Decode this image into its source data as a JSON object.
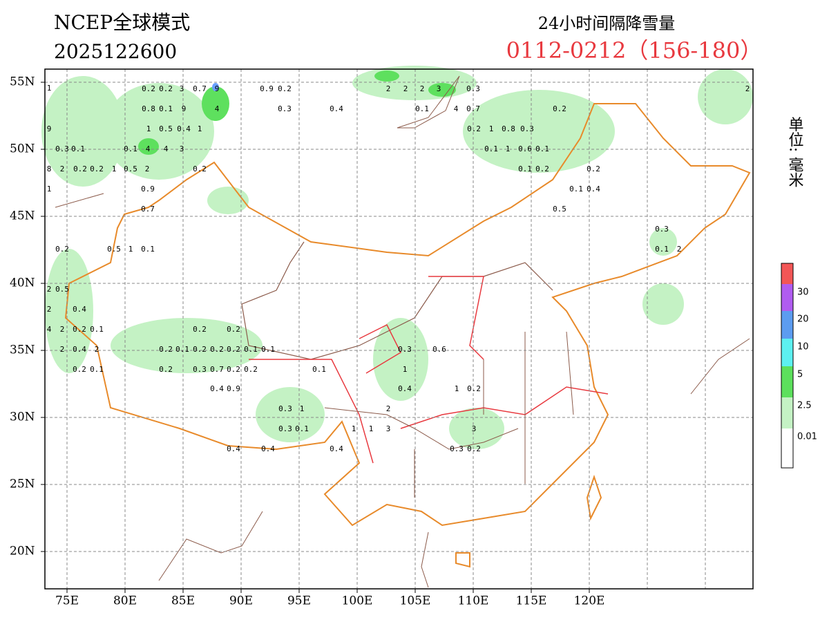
{
  "header": {
    "model": "NCEP全球模式",
    "init_time": "2025122600",
    "product": "24小时间隔降雪量",
    "period": "0112-0212（156-180）",
    "unit": "单位: 毫米"
  },
  "axes": {
    "lat_labels": [
      "55N",
      "50N",
      "45N",
      "40N",
      "35N",
      "30N",
      "25N",
      "20N"
    ],
    "lon_labels": [
      "75E",
      "80E",
      "85E",
      "90E",
      "95E",
      "100E",
      "105E",
      "110E",
      "115E",
      "120E"
    ]
  },
  "legend": {
    "labels": [
      "30",
      "20",
      "10",
      "5",
      "2.5",
      "0.01"
    ]
  },
  "stations": [
    1,
    0.2,
    0.2,
    3,
    0.7,
    9,
    0.9,
    0.2,
    2,
    2,
    2,
    3,
    0.3,
    2,
    0.8,
    0.1,
    9,
    4,
    0.3,
    0.4,
    0.1,
    4,
    0.7,
    0.2,
    9,
    1,
    0.5,
    0.4,
    1,
    0.2,
    1,
    0.8,
    0.3,
    0.3,
    0.1,
    0.1,
    4,
    4,
    3,
    0.1,
    1,
    0.6,
    0.1,
    8,
    2,
    0.2,
    0.2,
    1,
    0.5,
    2,
    0.2,
    0.1,
    0.2,
    0.2,
    1,
    0.9,
    0.1,
    0.4,
    0.7,
    0.5,
    0.3,
    0.2,
    0.5,
    1,
    0.1,
    0.1,
    2,
    0.5,
    2,
    2,
    0.4,
    4,
    2,
    0.2,
    0.1,
    0.2,
    0.2,
    2,
    0.4,
    2,
    0.2,
    0.1,
    0.2,
    0.2,
    0.2,
    0.1,
    0.1,
    0.3,
    0.6,
    0.2,
    0.1,
    0.2,
    0.3,
    0.7,
    0.2,
    0.2,
    0.1,
    1,
    0.4,
    0.9,
    0.4,
    1,
    0.2,
    0.3,
    1,
    2,
    0.3,
    0.1,
    1,
    1,
    3,
    3,
    0.4,
    0.4,
    0.4,
    0.3,
    0.2
  ]
}
